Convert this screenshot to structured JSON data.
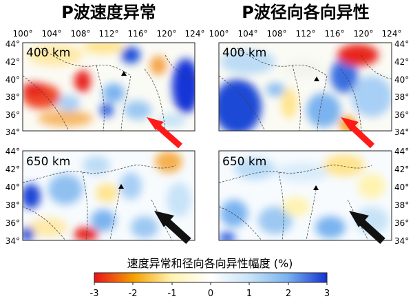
{
  "panel_titles": [
    "P波速度异常",
    "P波径向各向异性"
  ],
  "lon_ticks": [
    "100°",
    "104°",
    "108°",
    "112°",
    "116°",
    "120°",
    "124°"
  ],
  "lat_ticks": [
    "44°",
    "42°",
    "40°",
    "38°",
    "36°",
    "34°"
  ],
  "depths": [
    "400 km",
    "650 km"
  ],
  "colorbar": {
    "title": "速度异常和径向各向异性幅度 (%)",
    "ticks": [
      "-3",
      "-2",
      "-1",
      "0",
      "1",
      "2",
      "3"
    ],
    "colors": [
      "#e8121a",
      "#f5a100",
      "#fff3b0",
      "#ffffff",
      "#c7e3f7",
      "#7ab3ef",
      "#1432d2"
    ]
  },
  "arrow_colors": {
    "red": "#ff1a1a",
    "black": "#111111"
  }
}
